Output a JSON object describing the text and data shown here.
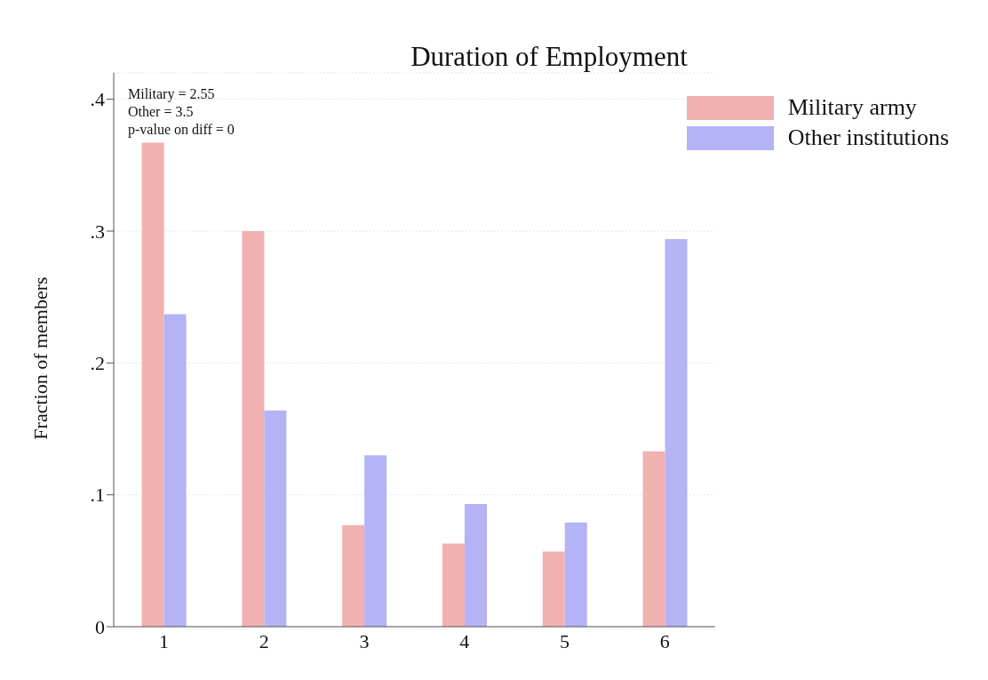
{
  "chart_data": {
    "type": "bar",
    "title": "Duration of Employment",
    "ylabel": "Fraction of members",
    "categories": [
      "1",
      "2",
      "3",
      "4",
      "5",
      "6"
    ],
    "series": [
      {
        "name": "Military army",
        "color": "#f2b1b1",
        "values": [
          0.367,
          0.3,
          0.077,
          0.063,
          0.057,
          0.133
        ]
      },
      {
        "name": "Other institutions",
        "color": "#b3b3f5",
        "values": [
          0.237,
          0.164,
          0.13,
          0.093,
          0.079,
          0.294
        ]
      }
    ],
    "ylim": [
      0,
      0.42
    ],
    "yticks": [
      0,
      {
        "value": 0.1,
        "label": ".1"
      },
      {
        "value": 0.2,
        "label": ".2"
      },
      {
        "value": 0.3,
        "label": ".3"
      },
      {
        "value": 0.4,
        "label": ".4"
      }
    ],
    "grid": "y",
    "legend": "top right",
    "annotations": [
      "Military = 2.55",
      "Other = 3.5",
      "p-value on diff = 0"
    ]
  }
}
